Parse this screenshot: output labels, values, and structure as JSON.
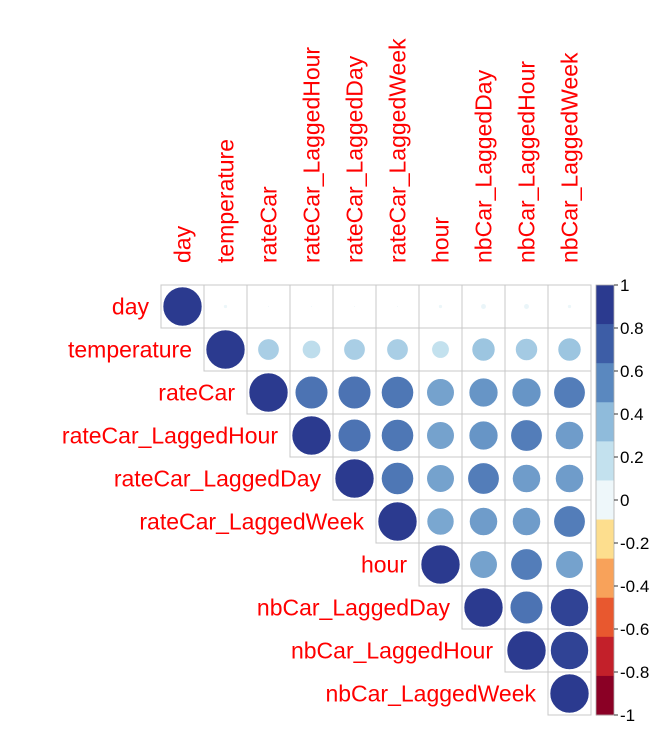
{
  "chart_data": {
    "type": "heatmap",
    "subtype": "correlation-matrix-upper-circle",
    "title": "",
    "variables": [
      "day",
      "temperature",
      "rateCar",
      "rateCar_LaggedHour",
      "rateCar_LaggedDay",
      "rateCar_LaggedWeek",
      "hour",
      "nbCar_LaggedDay",
      "nbCar_LaggedHour",
      "nbCar_LaggedWeek"
    ],
    "matrix": [
      [
        1.0,
        0.01,
        0.0,
        0.0,
        0.0,
        0.0,
        0.01,
        0.02,
        0.02,
        0.01
      ],
      [
        0.01,
        1.0,
        0.3,
        0.22,
        0.3,
        0.3,
        0.2,
        0.35,
        0.32,
        0.35
      ],
      [
        0.0,
        0.3,
        1.0,
        0.7,
        0.7,
        0.68,
        0.5,
        0.55,
        0.55,
        0.65
      ],
      [
        0.0,
        0.22,
        0.7,
        1.0,
        0.7,
        0.68,
        0.5,
        0.55,
        0.65,
        0.52
      ],
      [
        0.0,
        0.3,
        0.7,
        0.7,
        1.0,
        0.68,
        0.5,
        0.65,
        0.52,
        0.52
      ],
      [
        0.0,
        0.3,
        0.68,
        0.68,
        0.68,
        1.0,
        0.48,
        0.52,
        0.52,
        0.65
      ],
      [
        0.01,
        0.2,
        0.5,
        0.5,
        0.5,
        0.48,
        1.0,
        0.5,
        0.65,
        0.5
      ],
      [
        0.02,
        0.35,
        0.55,
        0.55,
        0.65,
        0.52,
        0.5,
        1.0,
        0.7,
        0.95
      ],
      [
        0.02,
        0.32,
        0.55,
        0.65,
        0.52,
        0.52,
        0.65,
        0.7,
        1.0,
        0.95
      ],
      [
        0.01,
        0.35,
        0.65,
        0.52,
        0.52,
        0.65,
        0.5,
        0.95,
        0.95,
        1.0
      ]
    ],
    "colorbar": {
      "range": [
        -1,
        1
      ],
      "ticks": [
        "1",
        "0.8",
        "0.6",
        "0.4",
        "0.2",
        "0",
        "-0.2",
        "-0.4",
        "-0.6",
        "-0.8",
        "-1"
      ],
      "colors": [
        "#2b3a8f",
        "#3d5da6",
        "#5a88bf",
        "#8fbbdb",
        "#c3e1ee",
        "#eef7fa",
        "#fdde8e",
        "#f8a25a",
        "#e8582f",
        "#c3202a",
        "#8a0025"
      ]
    },
    "label_color": "#ff0000",
    "grid": true
  }
}
